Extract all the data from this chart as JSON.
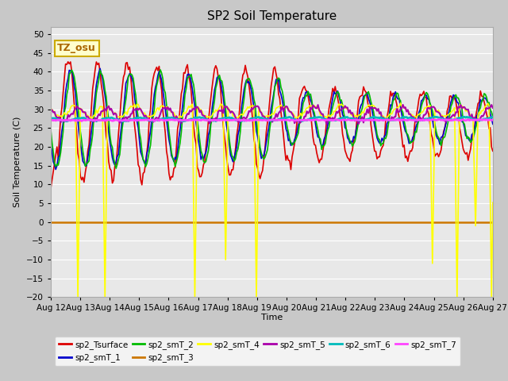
{
  "title": "SP2 Soil Temperature",
  "ylabel": "Soil Temperature (C)",
  "xlabel": "Time",
  "ylim": [
    -20,
    52
  ],
  "yticks": [
    -20,
    -15,
    -10,
    -5,
    0,
    5,
    10,
    15,
    20,
    25,
    30,
    35,
    40,
    45,
    50
  ],
  "xlim": [
    0,
    360
  ],
  "fig_bg": "#c8c8c8",
  "plot_bg": "#e8e8e8",
  "annotation_text": "TZ_osu",
  "annotation_bg": "#ffffcc",
  "annotation_border": "#ccaa00",
  "series": {
    "sp2_Tsurface": {
      "color": "#dd0000",
      "lw": 1.2
    },
    "sp2_smT_1": {
      "color": "#0000cc",
      "lw": 1.2
    },
    "sp2_smT_2": {
      "color": "#00bb00",
      "lw": 1.2
    },
    "sp2_smT_3": {
      "color": "#cc7700",
      "lw": 1.8
    },
    "sp2_smT_4": {
      "color": "#ffff00",
      "lw": 1.2
    },
    "sp2_smT_5": {
      "color": "#aa00aa",
      "lw": 1.5
    },
    "sp2_smT_6": {
      "color": "#00bbbb",
      "lw": 2.0
    },
    "sp2_smT_7": {
      "color": "#ff44ff",
      "lw": 2.0
    }
  },
  "xtick_labels": [
    "Aug 12",
    "Aug 13",
    "Aug 14",
    "Aug 15",
    "Aug 16",
    "Aug 17",
    "Aug 18",
    "Aug 19",
    "Aug 20",
    "Aug 21",
    "Aug 22",
    "Aug 23",
    "Aug 24",
    "Aug 25",
    "Aug 26",
    "Aug 27"
  ],
  "xtick_positions": [
    0,
    24,
    48,
    72,
    96,
    120,
    144,
    168,
    192,
    216,
    240,
    264,
    288,
    312,
    336,
    360
  ]
}
